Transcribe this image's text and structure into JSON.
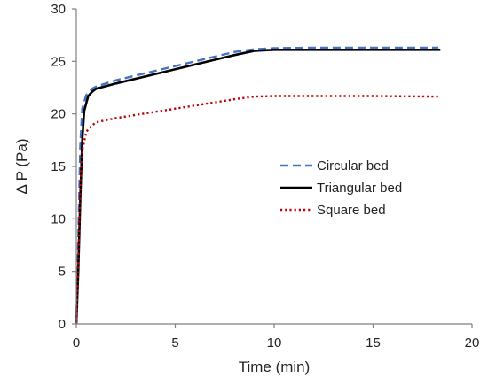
{
  "chart_data": {
    "type": "line",
    "title": "",
    "xlabel": "Time (min)",
    "ylabel": "Δ P (Pa)",
    "xlim": [
      0,
      20
    ],
    "ylim": [
      0,
      30
    ],
    "xticks": [
      0,
      5,
      10,
      15,
      20
    ],
    "yticks": [
      0,
      5,
      10,
      15,
      20,
      25,
      30
    ],
    "xtick_labels": [
      "0",
      "5",
      "10",
      "15",
      "20"
    ],
    "ytick_labels": [
      "0",
      "5",
      "10",
      "15",
      "20",
      "25",
      "30"
    ],
    "grid": false,
    "legend_position": "center-right",
    "series": [
      {
        "name": "Circular bed",
        "color": "#4472C4",
        "dash": "dashed",
        "points": [
          [
            0,
            0
          ],
          [
            0.1,
            8
          ],
          [
            0.2,
            17
          ],
          [
            0.3,
            20.5
          ],
          [
            0.5,
            21.8
          ],
          [
            0.8,
            22.4
          ],
          [
            1,
            22.6
          ],
          [
            2,
            23.2
          ],
          [
            4,
            24.1
          ],
          [
            6,
            25.0
          ],
          [
            8,
            25.9
          ],
          [
            9,
            26.15
          ],
          [
            10,
            26.25
          ],
          [
            12,
            26.3
          ],
          [
            15,
            26.3
          ],
          [
            18.3,
            26.3
          ]
        ]
      },
      {
        "name": "Triangular bed",
        "color": "#000000",
        "dash": "solid",
        "points": [
          [
            0,
            0
          ],
          [
            0.1,
            5
          ],
          [
            0.2,
            12
          ],
          [
            0.3,
            17.5
          ],
          [
            0.4,
            20.3
          ],
          [
            0.6,
            21.7
          ],
          [
            0.8,
            22.1
          ],
          [
            1,
            22.4
          ],
          [
            2,
            22.9
          ],
          [
            4,
            23.8
          ],
          [
            6,
            24.7
          ],
          [
            8,
            25.6
          ],
          [
            9,
            26.0
          ],
          [
            10,
            26.1
          ],
          [
            12,
            26.1
          ],
          [
            15,
            26.1
          ],
          [
            18.4,
            26.1
          ]
        ]
      },
      {
        "name": "Square bed",
        "color": "#C00000",
        "dash": "dotted",
        "points": [
          [
            0,
            0
          ],
          [
            0.1,
            6
          ],
          [
            0.2,
            13
          ],
          [
            0.3,
            16.5
          ],
          [
            0.5,
            18.3
          ],
          [
            0.8,
            18.9
          ],
          [
            1,
            19.2
          ],
          [
            2,
            19.6
          ],
          [
            4,
            20.2
          ],
          [
            6,
            20.8
          ],
          [
            8,
            21.4
          ],
          [
            9,
            21.65
          ],
          [
            10,
            21.7
          ],
          [
            12,
            21.7
          ],
          [
            15,
            21.7
          ],
          [
            18.3,
            21.65
          ]
        ]
      }
    ]
  }
}
